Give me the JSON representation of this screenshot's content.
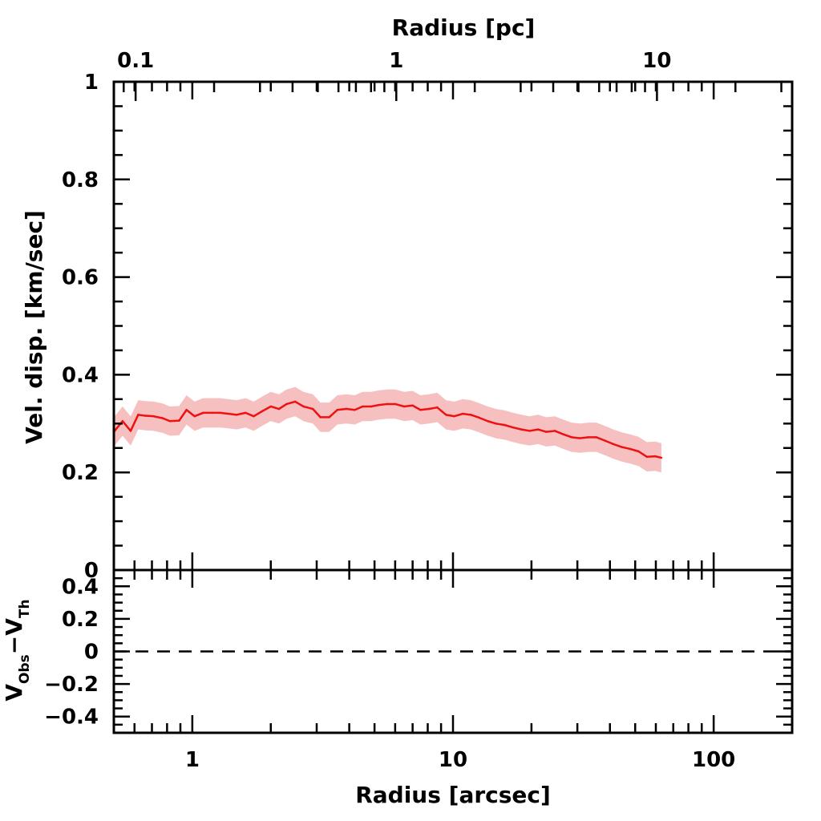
{
  "chart_data": [
    {
      "type": "line",
      "panel": "main",
      "xlabel": "Radius [arcsec]",
      "ylabel": "Vel. disp. [km/sec]",
      "x_scale": "log",
      "xlim": [
        0.5,
        200
      ],
      "ylim": [
        0,
        1
      ],
      "top_axis": {
        "label": "Radius [pc]",
        "scale": "log",
        "ticks": [
          0.1,
          1,
          10
        ],
        "tick_labels": [
          "0.1",
          "1",
          "10"
        ],
        "arcsec_per_pc": 6.06
      },
      "y_ticks": [
        0,
        0.2,
        0.4,
        0.6,
        0.8,
        1
      ],
      "y_tick_labels": [
        "0",
        "0.2",
        "0.4",
        "0.6",
        "0.8",
        "1"
      ],
      "x_ticks": [
        1,
        10,
        100
      ],
      "x_tick_labels": [
        "1",
        "10",
        "100"
      ],
      "colors": {
        "line": "#ee1111",
        "band": "#f7c0c0"
      },
      "series": [
        {
          "x": [
            0.5,
            0.54,
            0.58,
            0.62,
            0.66,
            0.71,
            0.77,
            0.82,
            0.89,
            0.95,
            1.02,
            1.1,
            1.19,
            1.28,
            1.38,
            1.48,
            1.6,
            1.72,
            1.85,
            2.0,
            2.15,
            2.3,
            2.48,
            2.67,
            2.9,
            3.1,
            3.35,
            3.6,
            3.9,
            4.2,
            4.5,
            4.85,
            5.2,
            5.6,
            6.0,
            6.5,
            7.0,
            7.5,
            8.1,
            8.7,
            9.4,
            10.1,
            10.9,
            11.7,
            12.6,
            13.6,
            14.6,
            15.8,
            17.0,
            18.3,
            19.7,
            21.2,
            22.8,
            24.6,
            26.5,
            28.5,
            30.7,
            33.0,
            35.5,
            38.3,
            41.2,
            44.4,
            47.8,
            51.5,
            55.4,
            59.7,
            63.0
          ],
          "y": [
            0.283,
            0.305,
            0.285,
            0.318,
            0.316,
            0.315,
            0.311,
            0.305,
            0.306,
            0.328,
            0.315,
            0.322,
            0.322,
            0.322,
            0.32,
            0.318,
            0.322,
            0.315,
            0.325,
            0.335,
            0.33,
            0.34,
            0.345,
            0.335,
            0.33,
            0.313,
            0.313,
            0.328,
            0.33,
            0.328,
            0.335,
            0.335,
            0.338,
            0.34,
            0.34,
            0.335,
            0.337,
            0.328,
            0.33,
            0.333,
            0.318,
            0.315,
            0.32,
            0.318,
            0.312,
            0.305,
            0.3,
            0.297,
            0.292,
            0.288,
            0.285,
            0.288,
            0.283,
            0.285,
            0.278,
            0.272,
            0.27,
            0.272,
            0.272,
            0.265,
            0.258,
            0.252,
            0.248,
            0.243,
            0.232,
            0.233,
            0.23
          ],
          "err": 0.03
        }
      ]
    },
    {
      "type": "line",
      "panel": "residual",
      "xlabel": "Radius [arcsec]",
      "ylabel": "V_Obs − V_Th",
      "ylabel_parts": {
        "v1": "V",
        "sub1": "Obs",
        "minus": "−",
        "v2": "V",
        "sub2": "Th"
      },
      "x_scale": "log",
      "xlim": [
        0.5,
        200
      ],
      "ylim": [
        -0.5,
        0.5
      ],
      "y_ticks": [
        0.4,
        0.2,
        0,
        -0.2,
        -0.4
      ],
      "y_tick_labels": [
        "0.4",
        "0.2",
        "0",
        "−0.2",
        "−0.4"
      ],
      "x_ticks": [
        1,
        10,
        100
      ],
      "x_tick_labels": [
        "1",
        "10",
        "100"
      ],
      "reference_line": {
        "y": 0,
        "style": "dashed"
      }
    }
  ]
}
